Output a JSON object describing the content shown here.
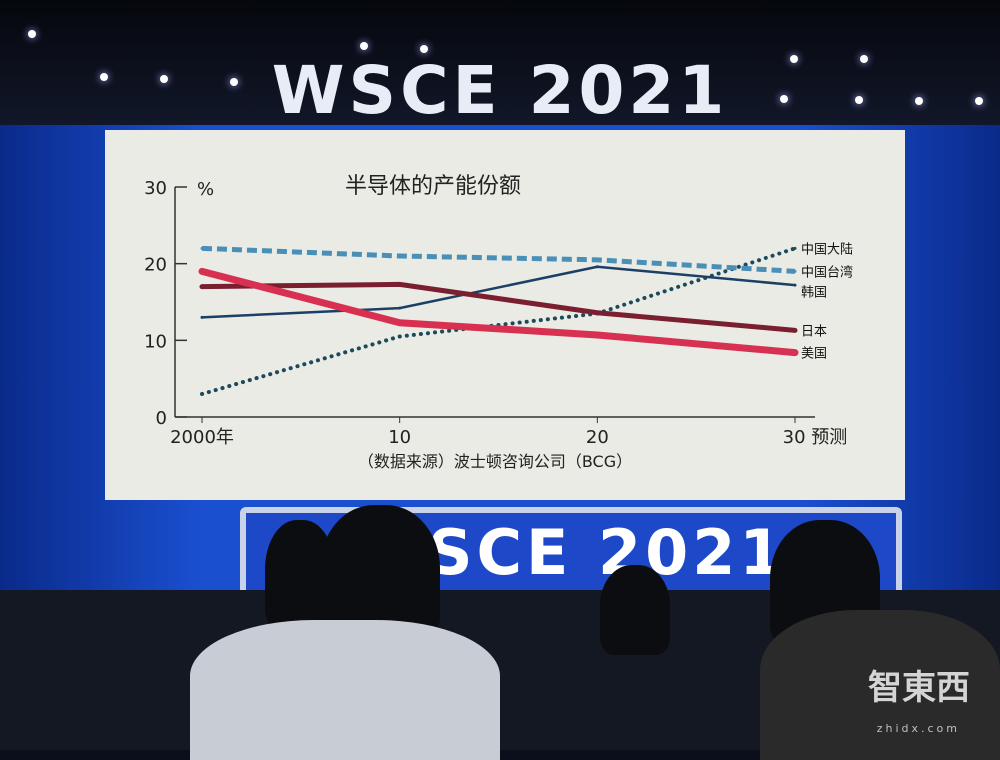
{
  "scene": {
    "banner": "WSCE 2021",
    "stage_sign": "WSCE 2021",
    "watermark": "智東西",
    "watermark_url": "zhidx.com"
  },
  "chart_data": {
    "type": "line",
    "title": "半导体的产能份额",
    "ylabel": "%",
    "source": "（数据来源）波士顿咨询公司（BCG）",
    "x": [
      2000,
      2010,
      2020,
      2030
    ],
    "x_tick_labels": [
      "2000年",
      "10",
      "20",
      "30 预测"
    ],
    "ylim": [
      0,
      30
    ],
    "y_ticks": [
      0,
      10,
      20,
      30
    ],
    "grid": false,
    "legend": "right-end labels",
    "series": [
      {
        "name": "中国大陆",
        "values": [
          3,
          10.5,
          13.5,
          22
        ],
        "color": "#1c4a5a",
        "style": "dotted"
      },
      {
        "name": "中国台湾",
        "values": [
          22,
          21,
          20.5,
          19
        ],
        "color": "#4a8fb8",
        "style": "dashed"
      },
      {
        "name": "韩国",
        "values": [
          13,
          14.2,
          19.6,
          17.2
        ],
        "color": "#1c3f66",
        "style": "solid"
      },
      {
        "name": "日本",
        "values": [
          17,
          17.3,
          13.6,
          11.3
        ],
        "color": "#7a1f30",
        "style": "solid"
      },
      {
        "name": "美国",
        "values": [
          19,
          12.3,
          10.7,
          8.4
        ],
        "color": "#d83050",
        "style": "solid"
      }
    ]
  }
}
